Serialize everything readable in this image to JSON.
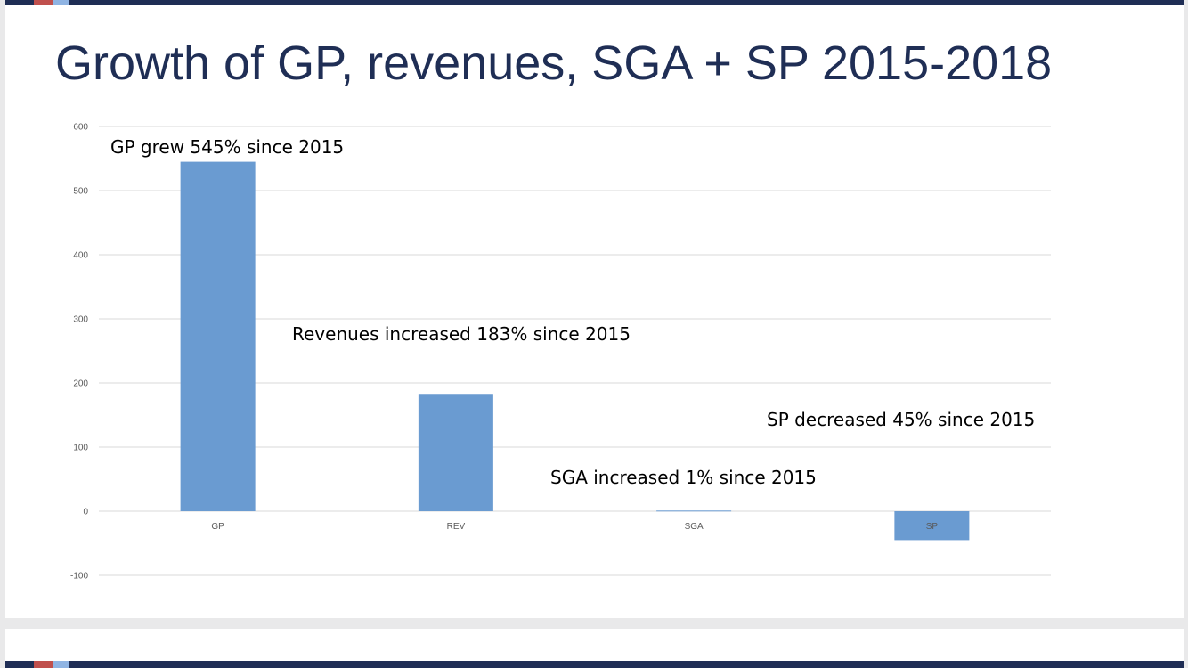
{
  "slide": {
    "title": "Growth of GP, revenues, SGA + SP 2015-2018"
  },
  "colors": {
    "bar": "#6a9bd1",
    "title": "#1f2e55",
    "header_bar": "#1f2e55",
    "accent_red": "#c0504d",
    "gridline": "#d9d9d9"
  },
  "chart_data": {
    "type": "bar",
    "categories": [
      "GP",
      "REV",
      "SGA",
      "SP"
    ],
    "values": [
      545,
      183,
      1,
      -45
    ],
    "ylim": [
      -100,
      600
    ],
    "yticks": [
      600,
      500,
      400,
      300,
      200,
      100,
      0,
      -100
    ],
    "grid": true,
    "title": "",
    "xlabel": "",
    "ylabel": "",
    "annotations": [
      "GP grew 545% since 2015",
      "Revenues increased 183% since 2015",
      "SGA increased 1% since 2015",
      "SP decreased 45% since 2015"
    ]
  }
}
